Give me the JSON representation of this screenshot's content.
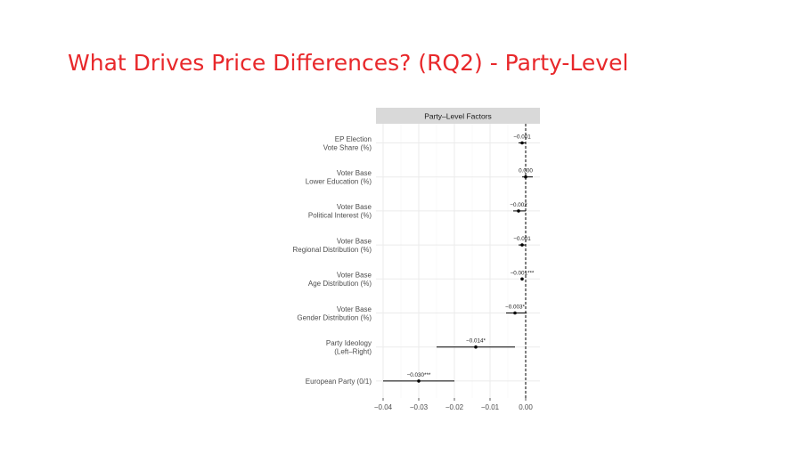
{
  "slide": {
    "title": "What Drives Price Differences? (RQ2) - Party-Level"
  },
  "chart_data": {
    "type": "coefficient-plot",
    "panel_title": "Party–Level Factors",
    "xlim": [
      -0.042,
      0.004
    ],
    "x_ticks": [
      -0.04,
      -0.03,
      -0.02,
      -0.01,
      0.0
    ],
    "x_tick_labels": [
      "−0.04",
      "−0.03",
      "−0.02",
      "−0.01",
      "0.00"
    ],
    "reference_line": 0.0,
    "grid": true,
    "colors": {
      "strip": "#d9d9d9",
      "grid": "#ebebeb",
      "points": "#000000"
    },
    "terms": [
      {
        "label": [
          "EP Election",
          "Vote Share (%)"
        ],
        "estimate": -0.001,
        "ci": [
          -0.002,
          0.0
        ],
        "annotation": "−0.001"
      },
      {
        "label": [
          "Voter Base",
          "Lower Education (%)"
        ],
        "estimate": 0.0,
        "ci": [
          -0.001,
          0.002
        ],
        "annotation": "0.000"
      },
      {
        "label": [
          "Voter Base",
          "Political Interest (%)"
        ],
        "estimate": -0.002,
        "ci": [
          -0.0035,
          0.0
        ],
        "annotation": "−0.002"
      },
      {
        "label": [
          "Voter Base",
          "Regional Distribution (%)"
        ],
        "estimate": -0.001,
        "ci": [
          -0.002,
          0.0
        ],
        "annotation": "−0.001"
      },
      {
        "label": [
          "Voter Base",
          "Age Distribution (%)"
        ],
        "estimate": -0.001,
        "ci": [
          -0.0013,
          -0.0007
        ],
        "annotation": "−0.001***"
      },
      {
        "label": [
          "Voter Base",
          "Gender Distribution (%)"
        ],
        "estimate": -0.003,
        "ci": [
          -0.0055,
          0.0003
        ],
        "annotation": "−0.003*"
      },
      {
        "label": [
          "Party Ideology",
          "(Left–Right)"
        ],
        "estimate": -0.014,
        "ci": [
          -0.025,
          -0.003
        ],
        "annotation": "−0.014*"
      },
      {
        "label": [
          "European Party (0/1)"
        ],
        "estimate": -0.03,
        "ci": [
          -0.04,
          -0.02
        ],
        "annotation": "−0.030***"
      }
    ]
  }
}
